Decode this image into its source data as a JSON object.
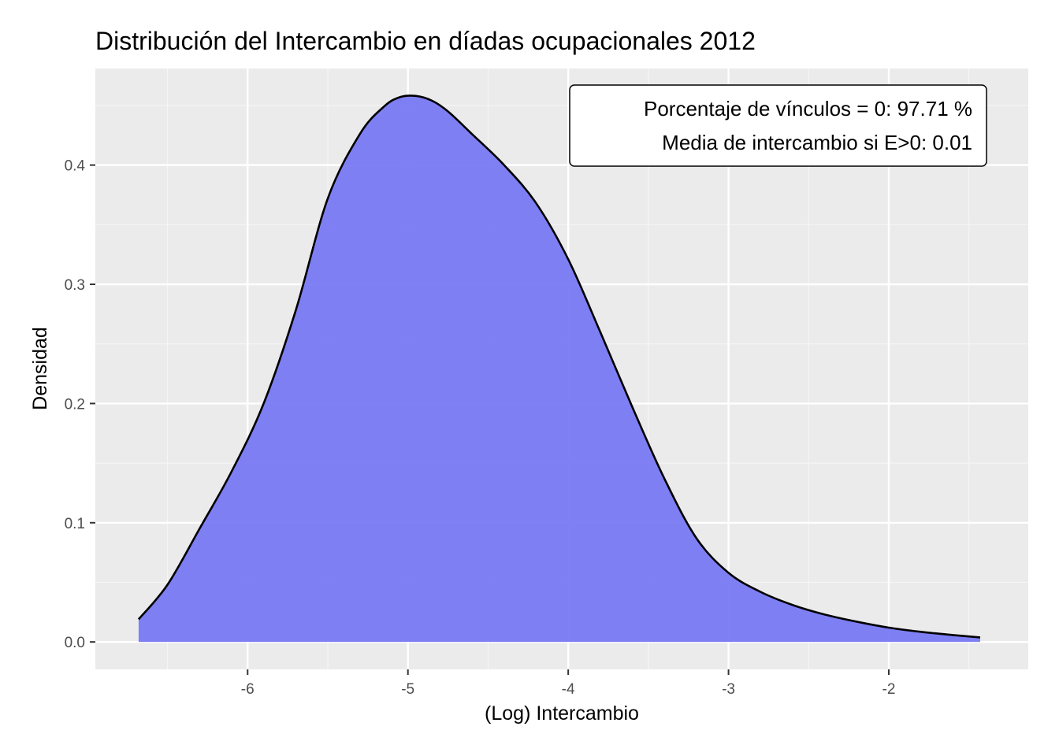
{
  "colors": {
    "panel_background": "#ebebeb",
    "grid_major": "#ffffff",
    "grid_minor": "#f5f5f5",
    "fill": "#7676f4",
    "outline": "#000000"
  },
  "chart_data": {
    "type": "area",
    "title": "Distribución del Intercambio en díadas ocupacionales 2012",
    "xlabel": "(Log) Intercambio",
    "ylabel": "Densidad",
    "xlim": [
      -6.95,
      -1.13
    ],
    "ylim": [
      -0.023,
      0.481
    ],
    "x_ticks": [
      -6,
      -5,
      -4,
      -3,
      -2
    ],
    "x_tick_labels": [
      "-6",
      "-5",
      "-4",
      "-3",
      "-2"
    ],
    "y_ticks": [
      0.0,
      0.1,
      0.2,
      0.3,
      0.4
    ],
    "y_tick_labels": [
      "0.0",
      "0.1",
      "0.2",
      "0.3",
      "0.4"
    ],
    "grid": true,
    "legend": "none",
    "x": [
      -6.68,
      -6.5,
      -6.3,
      -6.1,
      -5.9,
      -5.7,
      -5.5,
      -5.3,
      -5.15,
      -5.05,
      -4.95,
      -4.85,
      -4.75,
      -4.6,
      -4.4,
      -4.2,
      -4.0,
      -3.8,
      -3.6,
      -3.4,
      -3.2,
      -3.0,
      -2.8,
      -2.6,
      -2.4,
      -2.2,
      -2.0,
      -1.8,
      -1.6,
      -1.43
    ],
    "y": [
      0.019,
      0.048,
      0.095,
      0.143,
      0.2,
      0.278,
      0.372,
      0.426,
      0.449,
      0.457,
      0.458,
      0.454,
      0.445,
      0.426,
      0.4,
      0.368,
      0.321,
      0.26,
      0.197,
      0.137,
      0.087,
      0.058,
      0.042,
      0.031,
      0.023,
      0.017,
      0.012,
      0.0085,
      0.0058,
      0.0038
    ],
    "annotation": {
      "line1": "Porcentaje de vínculos = 0: 97.71 %",
      "line2": "Media de intercambio si E>0: 0.01"
    }
  }
}
